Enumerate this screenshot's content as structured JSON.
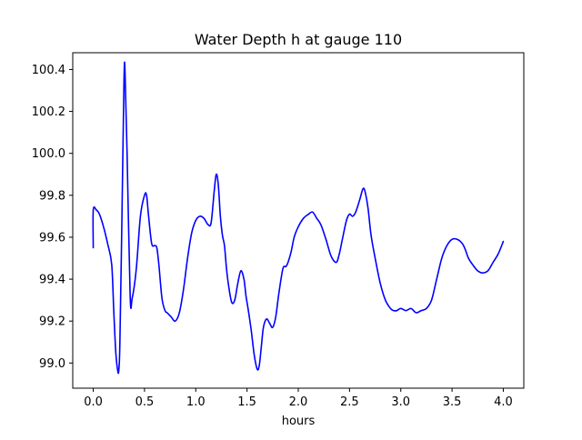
{
  "chart_data": {
    "type": "line",
    "title": "Water Depth h at gauge 110",
    "xlabel": "hours",
    "ylabel": "",
    "xlim": [
      -0.2,
      4.2
    ],
    "ylim": [
      98.88,
      100.48
    ],
    "x_ticks": [
      0.0,
      0.5,
      1.0,
      1.5,
      2.0,
      2.5,
      3.0,
      3.5,
      4.0
    ],
    "x_tick_labels": [
      "0.0",
      "0.5",
      "1.0",
      "1.5",
      "2.0",
      "2.5",
      "3.0",
      "3.5",
      "4.0"
    ],
    "y_ticks": [
      99.0,
      99.2,
      99.4,
      99.6,
      99.8,
      100.0,
      100.2,
      100.4
    ],
    "y_tick_labels": [
      "99.0",
      "99.2",
      "99.4",
      "99.6",
      "99.8",
      "100.0",
      "100.2",
      "100.4"
    ],
    "grid": false,
    "legend": "none",
    "series": [
      {
        "color": "#0000ff",
        "x": [
          0.0,
          0.0,
          0.03,
          0.06,
          0.1,
          0.14,
          0.18,
          0.2,
          0.22,
          0.24,
          0.25,
          0.26,
          0.28,
          0.3,
          0.31,
          0.33,
          0.36,
          0.38,
          0.42,
          0.46,
          0.5,
          0.52,
          0.54,
          0.57,
          0.6,
          0.62,
          0.64,
          0.67,
          0.7,
          0.72,
          0.76,
          0.8,
          0.84,
          0.88,
          0.92,
          0.96,
          1.0,
          1.04,
          1.08,
          1.12,
          1.15,
          1.18,
          1.2,
          1.22,
          1.24,
          1.26,
          1.28,
          1.3,
          1.32,
          1.35,
          1.38,
          1.41,
          1.44,
          1.47,
          1.49,
          1.51,
          1.54,
          1.57,
          1.6,
          1.62,
          1.64,
          1.66,
          1.69,
          1.72,
          1.75,
          1.78,
          1.81,
          1.85,
          1.88,
          1.9,
          1.93,
          1.96,
          2.0,
          2.05,
          2.1,
          2.14,
          2.18,
          2.22,
          2.27,
          2.32,
          2.37,
          2.4,
          2.43,
          2.47,
          2.5,
          2.53,
          2.56,
          2.6,
          2.63,
          2.65,
          2.68,
          2.71,
          2.75,
          2.8,
          2.85,
          2.9,
          2.93,
          2.96,
          3.0,
          3.05,
          3.1,
          3.15,
          3.2,
          3.25,
          3.3,
          3.35,
          3.4,
          3.45,
          3.5,
          3.55,
          3.6,
          3.63,
          3.66,
          3.7,
          3.75,
          3.8,
          3.85,
          3.9,
          3.95,
          4.0
        ],
        "y": [
          99.55,
          99.73,
          99.73,
          99.71,
          99.65,
          99.57,
          99.47,
          99.25,
          99.05,
          98.96,
          98.97,
          99.1,
          99.7,
          100.35,
          100.39,
          100.0,
          99.32,
          99.31,
          99.45,
          99.7,
          99.8,
          99.8,
          99.7,
          99.57,
          99.56,
          99.55,
          99.47,
          99.31,
          99.25,
          99.24,
          99.22,
          99.2,
          99.24,
          99.35,
          99.5,
          99.62,
          99.68,
          99.7,
          99.69,
          99.66,
          99.67,
          99.82,
          99.9,
          99.85,
          99.7,
          99.61,
          99.56,
          99.45,
          99.37,
          99.29,
          99.3,
          99.38,
          99.44,
          99.4,
          99.32,
          99.26,
          99.16,
          99.04,
          98.97,
          98.99,
          99.08,
          99.17,
          99.21,
          99.19,
          99.17,
          99.22,
          99.33,
          99.45,
          99.46,
          99.48,
          99.53,
          99.6,
          99.65,
          99.69,
          99.71,
          99.72,
          99.69,
          99.66,
          99.59,
          99.51,
          99.48,
          99.52,
          99.59,
          99.68,
          99.71,
          99.7,
          99.72,
          99.78,
          99.83,
          99.82,
          99.74,
          99.61,
          99.5,
          99.38,
          99.3,
          99.26,
          99.25,
          99.25,
          99.26,
          99.25,
          99.26,
          99.24,
          99.25,
          99.26,
          99.3,
          99.4,
          99.5,
          99.56,
          99.59,
          99.59,
          99.57,
          99.54,
          99.5,
          99.47,
          99.44,
          99.43,
          99.44,
          99.48,
          99.52,
          99.58
        ]
      }
    ]
  }
}
